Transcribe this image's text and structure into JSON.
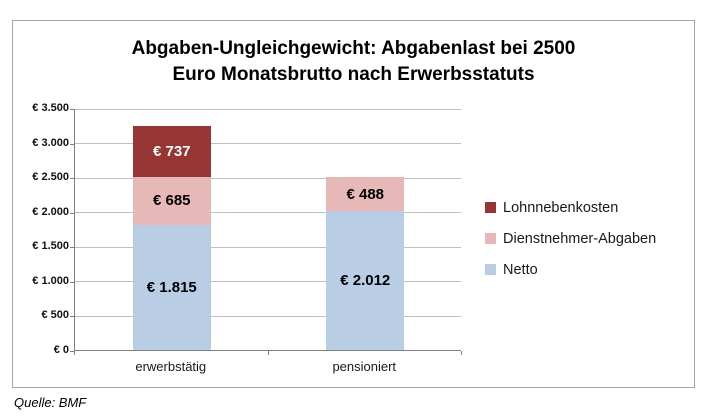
{
  "title": {
    "line1": "Abgaben-Ungleichgewicht: Abgabenlast bei 2500",
    "line2": "Euro Monatsbrutto nach Erwerbsstatuts"
  },
  "source": "Quelle: BMF",
  "colors": {
    "frame_border": "#a6a6a6",
    "axis": "#808080",
    "grid": "#bfbfbf",
    "lohnnebenkosten": "#963634",
    "dienstnehmer_abgaben": "#e6b9b8",
    "netto": "#b9cde5"
  },
  "chart_data": {
    "type": "bar",
    "stacked": true,
    "title": "Abgaben-Ungleichgewicht: Abgabenlast bei 2500 Euro Monatsbrutto nach Erwerbsstatuts",
    "categories": [
      "erwerbstätig",
      "pensioniert"
    ],
    "series": [
      {
        "name": "Netto",
        "color": "#b9cde5",
        "values": [
          1815,
          2012
        ],
        "labels": [
          "€ 1.815",
          "€ 2.012"
        ],
        "label_color": "#000000"
      },
      {
        "name": "Dienstnehmer-Abgaben",
        "color": "#e6b9b8",
        "values": [
          685,
          488
        ],
        "labels": [
          "€ 685",
          "€ 488"
        ],
        "label_color": "#000000"
      },
      {
        "name": "Lohnnebenkosten",
        "color": "#963634",
        "values": [
          737,
          0
        ],
        "labels": [
          "€ 737",
          ""
        ],
        "label_color": "#ffffff"
      }
    ],
    "totals": [
      3237,
      2500
    ],
    "ylim": [
      0,
      3500
    ],
    "yticks": [
      {
        "value": 0,
        "label": "€ 0"
      },
      {
        "value": 500,
        "label": "€ 500"
      },
      {
        "value": 1000,
        "label": "€ 1.000"
      },
      {
        "value": 1500,
        "label": "€ 1.500"
      },
      {
        "value": 2000,
        "label": "€ 2.000"
      },
      {
        "value": 2500,
        "label": "€ 2.500"
      },
      {
        "value": 3000,
        "label": "€ 3.000"
      },
      {
        "value": 3500,
        "label": "€ 3.500"
      }
    ],
    "grid": true,
    "legend_position": "right",
    "legend": [
      "Lohnnebenkosten",
      "Dienstnehmer-Abgaben",
      "Netto"
    ]
  }
}
